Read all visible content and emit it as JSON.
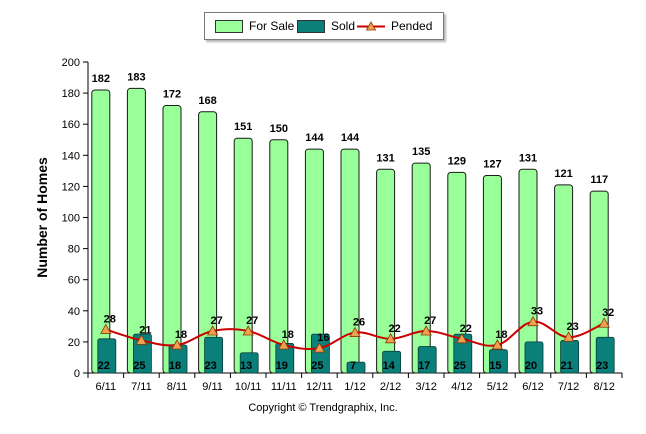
{
  "chart_data": {
    "type": "bar",
    "ylabel": "Number of Homes",
    "xlabel": "",
    "ylim": [
      0,
      200
    ],
    "yticks": [
      0,
      20,
      40,
      60,
      80,
      100,
      120,
      140,
      160,
      180,
      200
    ],
    "categories": [
      "6/11",
      "7/11",
      "8/11",
      "9/11",
      "10/11",
      "11/11",
      "12/11",
      "1/12",
      "2/12",
      "3/12",
      "4/12",
      "5/12",
      "6/12",
      "7/12",
      "8/12"
    ],
    "series": [
      {
        "name": "For Sale",
        "type": "bar",
        "color": "#99ff99",
        "values": [
          182,
          183,
          172,
          168,
          151,
          150,
          144,
          144,
          131,
          135,
          129,
          127,
          131,
          121,
          117
        ]
      },
      {
        "name": "Sold",
        "type": "bar",
        "color": "#0b7f7a",
        "values": [
          22,
          25,
          18,
          23,
          13,
          19,
          25,
          7,
          14,
          17,
          25,
          15,
          20,
          21,
          23
        ]
      },
      {
        "name": "Pended",
        "type": "line",
        "color": "#cc0000",
        "marker_color": "#f0a050",
        "values": [
          28,
          21,
          18,
          27,
          27,
          18,
          16,
          26,
          22,
          27,
          22,
          18,
          33,
          23,
          32
        ]
      }
    ],
    "legend_position": "top-center",
    "grid": false
  },
  "footer": {
    "copyright": "Copyright © Trendgraphix, Inc."
  }
}
